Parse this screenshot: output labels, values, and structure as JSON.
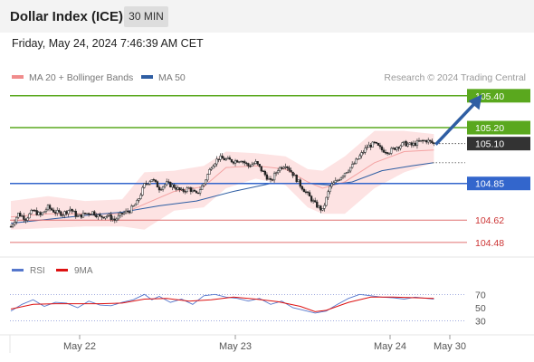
{
  "header": {
    "title": "Dollar Index (ICE)",
    "timeframe": "30 MIN"
  },
  "timestamp": "Friday, May 24, 2024 7:46:39 AM CET",
  "legend": {
    "bollinger": {
      "label": "MA 20 + Bollinger Bands",
      "color": "#f08c8c"
    },
    "ma50": {
      "label": "MA 50",
      "color": "#2f5ea3"
    }
  },
  "credit": "Research © 2024 Trading Central",
  "colors": {
    "resistance": "#5aa81e",
    "pivot": "#3366cc",
    "support": "#e07070",
    "last": "#333333",
    "bull": "#5aa81e",
    "bear": "#cc2222",
    "arrow": "#2f5ea3"
  },
  "chart_data": [
    {
      "type": "candlestick",
      "x_ticks": [
        "May 22",
        "May 23",
        "May 24",
        "May 30"
      ],
      "y_range": [
        104.4,
        105.45
      ],
      "levels": [
        {
          "value": 105.4,
          "label": "105.40",
          "kind": "resistance"
        },
        {
          "value": 105.2,
          "label": "105.20",
          "kind": "resistance"
        },
        {
          "value": 105.1,
          "label": "105.10",
          "kind": "last"
        },
        {
          "value": 104.85,
          "label": "104.85",
          "kind": "pivot"
        },
        {
          "value": 104.62,
          "label": "104.62",
          "kind": "support"
        },
        {
          "value": 104.48,
          "label": "104.48",
          "kind": "support"
        }
      ],
      "close_path": [
        [
          0,
          104.58
        ],
        [
          4,
          104.66
        ],
        [
          8,
          104.63
        ],
        [
          12,
          104.68
        ],
        [
          16,
          104.65
        ],
        [
          20,
          104.7
        ],
        [
          24,
          104.67
        ],
        [
          28,
          104.66
        ],
        [
          32,
          104.69
        ],
        [
          36,
          104.64
        ],
        [
          40,
          104.66
        ],
        [
          44,
          104.67
        ],
        [
          48,
          104.64
        ],
        [
          52,
          104.65
        ],
        [
          56,
          104.62
        ],
        [
          60,
          104.66
        ],
        [
          64,
          104.68
        ],
        [
          68,
          104.73
        ],
        [
          72,
          104.84
        ],
        [
          76,
          104.88
        ],
        [
          80,
          104.82
        ],
        [
          84,
          104.85
        ],
        [
          88,
          104.83
        ],
        [
          92,
          104.8
        ],
        [
          96,
          104.82
        ],
        [
          100,
          104.78
        ],
        [
          104,
          104.85
        ],
        [
          108,
          104.96
        ],
        [
          112,
          105.01
        ],
        [
          116,
          105.0
        ],
        [
          120,
          104.99
        ],
        [
          124,
          105.0
        ],
        [
          128,
          104.96
        ],
        [
          132,
          104.98
        ],
        [
          136,
          104.92
        ],
        [
          140,
          104.86
        ],
        [
          144,
          104.94
        ],
        [
          148,
          104.97
        ],
        [
          152,
          104.91
        ],
        [
          156,
          104.84
        ],
        [
          160,
          104.78
        ],
        [
          164,
          104.72
        ],
        [
          168,
          104.68
        ],
        [
          172,
          104.83
        ],
        [
          176,
          104.87
        ],
        [
          180,
          104.92
        ],
        [
          184,
          104.96
        ],
        [
          188,
          105.02
        ],
        [
          192,
          105.08
        ],
        [
          196,
          105.1
        ],
        [
          200,
          105.06
        ],
        [
          204,
          105.05
        ],
        [
          208,
          105.08
        ],
        [
          212,
          105.1
        ],
        [
          216,
          105.09
        ],
        [
          220,
          105.11
        ],
        [
          224,
          105.12
        ],
        [
          228,
          105.1
        ]
      ],
      "bollinger_mid": [
        [
          0,
          104.64
        ],
        [
          20,
          104.66
        ],
        [
          40,
          104.66
        ],
        [
          60,
          104.66
        ],
        [
          72,
          104.72
        ],
        [
          88,
          104.8
        ],
        [
          104,
          104.83
        ],
        [
          116,
          104.95
        ],
        [
          132,
          104.96
        ],
        [
          148,
          104.94
        ],
        [
          160,
          104.86
        ],
        [
          168,
          104.82
        ],
        [
          180,
          104.86
        ],
        [
          196,
          104.98
        ],
        [
          212,
          105.05
        ],
        [
          228,
          105.06
        ]
      ],
      "bollinger_upper": [
        [
          0,
          104.74
        ],
        [
          20,
          104.77
        ],
        [
          40,
          104.74
        ],
        [
          60,
          104.75
        ],
        [
          72,
          104.92
        ],
        [
          88,
          104.93
        ],
        [
          104,
          104.96
        ],
        [
          116,
          105.05
        ],
        [
          132,
          105.04
        ],
        [
          148,
          105.02
        ],
        [
          160,
          104.94
        ],
        [
          168,
          104.93
        ],
        [
          180,
          105.02
        ],
        [
          196,
          105.18
        ],
        [
          212,
          105.18
        ],
        [
          228,
          105.16
        ]
      ],
      "bollinger_lower": [
        [
          0,
          104.56
        ],
        [
          20,
          104.57
        ],
        [
          40,
          104.58
        ],
        [
          60,
          104.58
        ],
        [
          72,
          104.56
        ],
        [
          88,
          104.68
        ],
        [
          104,
          104.7
        ],
        [
          116,
          104.82
        ],
        [
          132,
          104.88
        ],
        [
          148,
          104.84
        ],
        [
          160,
          104.7
        ],
        [
          168,
          104.66
        ],
        [
          180,
          104.66
        ],
        [
          196,
          104.82
        ],
        [
          212,
          104.92
        ],
        [
          228,
          104.98
        ]
      ],
      "ma50": [
        [
          0,
          104.6
        ],
        [
          40,
          104.65
        ],
        [
          60,
          104.67
        ],
        [
          80,
          104.71
        ],
        [
          100,
          104.74
        ],
        [
          120,
          104.8
        ],
        [
          140,
          104.85
        ],
        [
          160,
          104.85
        ],
        [
          172,
          104.84
        ],
        [
          184,
          104.86
        ],
        [
          200,
          104.93
        ],
        [
          216,
          104.96
        ],
        [
          228,
          104.98
        ]
      ],
      "forecast": {
        "from": [
          228,
          105.1
        ],
        "to": [
          250,
          105.38
        ]
      }
    },
    {
      "type": "line",
      "name": "RSI",
      "y_ticks": [
        70,
        50,
        30
      ],
      "legend": [
        {
          "label": "RSI",
          "color": "#5577cc"
        },
        {
          "label": "9MA",
          "color": "#dd1111"
        }
      ],
      "rsi": [
        [
          0,
          45
        ],
        [
          6,
          55
        ],
        [
          12,
          62
        ],
        [
          18,
          52
        ],
        [
          24,
          58
        ],
        [
          30,
          57
        ],
        [
          36,
          50
        ],
        [
          42,
          60
        ],
        [
          48,
          54
        ],
        [
          54,
          53
        ],
        [
          60,
          58
        ],
        [
          66,
          62
        ],
        [
          72,
          70
        ],
        [
          76,
          62
        ],
        [
          80,
          67
        ],
        [
          86,
          58
        ],
        [
          92,
          63
        ],
        [
          98,
          55
        ],
        [
          104,
          68
        ],
        [
          110,
          70
        ],
        [
          116,
          66
        ],
        [
          122,
          64
        ],
        [
          128,
          60
        ],
        [
          134,
          64
        ],
        [
          140,
          55
        ],
        [
          146,
          60
        ],
        [
          152,
          50
        ],
        [
          158,
          46
        ],
        [
          164,
          42
        ],
        [
          170,
          45
        ],
        [
          176,
          55
        ],
        [
          182,
          64
        ],
        [
          188,
          70
        ],
        [
          194,
          68
        ],
        [
          200,
          66
        ],
        [
          206,
          65
        ],
        [
          212,
          63
        ],
        [
          218,
          66
        ],
        [
          224,
          64
        ],
        [
          228,
          63
        ]
      ],
      "ma9": [
        [
          0,
          48
        ],
        [
          12,
          55
        ],
        [
          24,
          56
        ],
        [
          36,
          56
        ],
        [
          48,
          56
        ],
        [
          60,
          57
        ],
        [
          72,
          63
        ],
        [
          84,
          64
        ],
        [
          96,
          60
        ],
        [
          108,
          62
        ],
        [
          120,
          66
        ],
        [
          132,
          63
        ],
        [
          144,
          59
        ],
        [
          156,
          52
        ],
        [
          164,
          44
        ],
        [
          170,
          46
        ],
        [
          182,
          58
        ],
        [
          194,
          66
        ],
        [
          206,
          66
        ],
        [
          218,
          65
        ],
        [
          228,
          64
        ]
      ]
    }
  ]
}
